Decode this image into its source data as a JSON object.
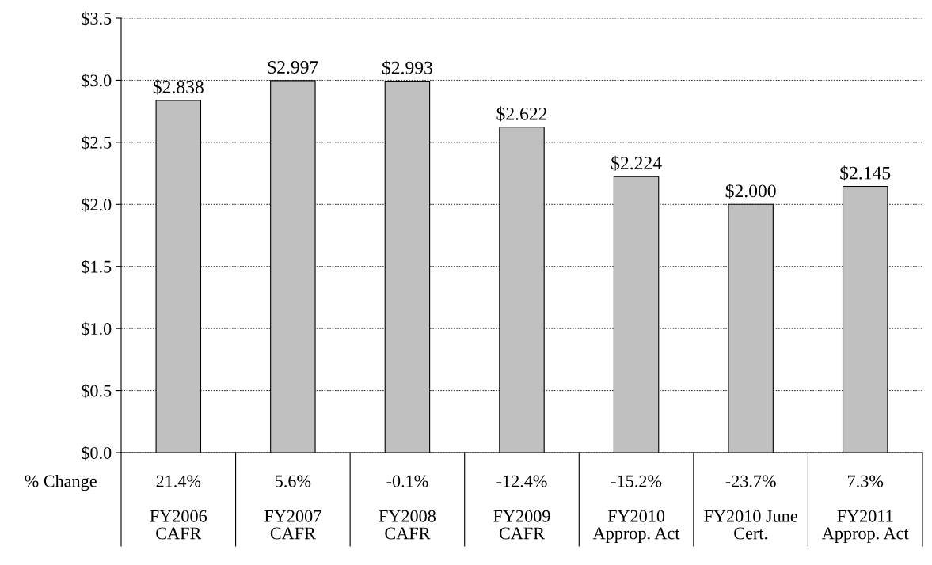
{
  "chart_data": {
    "type": "bar",
    "categories": [
      "FY2006\nCAFR",
      "FY2007\nCAFR",
      "FY2008\nCAFR",
      "FY2009\nCAFR",
      "FY2010\nApprop. Act",
      "FY2010 June\nCert.",
      "FY2011\nApprop. Act"
    ],
    "values": [
      2.838,
      2.997,
      2.993,
      2.622,
      2.224,
      2.0,
      2.145
    ],
    "value_labels": [
      "$2.838",
      "$2.997",
      "$2.993",
      "$2.622",
      "$2.224",
      "$2.000",
      "$2.145"
    ],
    "color": "#c0c0c0",
    "ylim": [
      0,
      3.5
    ],
    "yticks": [
      {
        "value": 0,
        "label": "$0.0"
      },
      {
        "value": 0.5,
        "label": "$0.5"
      },
      {
        "value": 1.0,
        "label": "$1.0"
      },
      {
        "value": 1.5,
        "label": "$1.5"
      },
      {
        "value": 2.0,
        "label": "$2.0"
      },
      {
        "value": 2.5,
        "label": "$2.5"
      },
      {
        "value": 3.0,
        "label": "$3.0"
      },
      {
        "value": 3.5,
        "label": "$3.5"
      }
    ],
    "grid": "y",
    "annotations": [
      "% Change",
      "21.4%",
      "5.6%",
      "-0.1%",
      "-12.4%",
      "-15.2%",
      "-23.7%",
      "7.3%"
    ]
  }
}
